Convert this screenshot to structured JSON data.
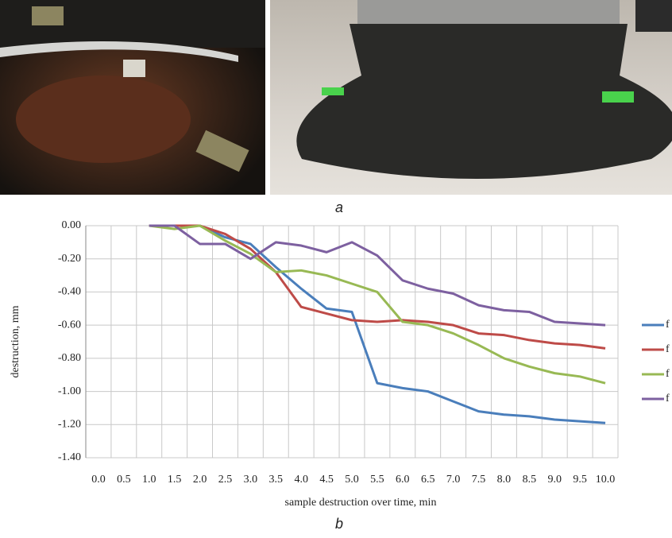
{
  "panel_a": {
    "label": "a"
  },
  "panel_b": {
    "label": "b"
  },
  "chart_data": {
    "type": "line",
    "xlabel": "sample destruction over time, min",
    "ylabel": "destruction, mm",
    "categories": [
      "0.0",
      "0.5",
      "1.0",
      "1.5",
      "2.0",
      "2.5",
      "3.0",
      "3.5",
      "4.0",
      "4.5",
      "5.0",
      "5.5",
      "6.0",
      "6.5",
      "7.0",
      "7.5",
      "8.0",
      "8.5",
      "9.0",
      "9.5",
      "10.0"
    ],
    "ylim": [
      -1.4,
      0
    ],
    "yticks": [
      {
        "value": 0,
        "label": "0.00"
      },
      {
        "value": -0.2,
        "label": "-0.20"
      },
      {
        "value": -0.4,
        "label": "-0.40"
      },
      {
        "value": -0.6,
        "label": "-0.60"
      },
      {
        "value": -0.8,
        "label": "-0.80"
      },
      {
        "value": -1.0,
        "label": "-1.00"
      },
      {
        "value": -1.2,
        "label": "-1.20"
      },
      {
        "value": -1.4,
        "label": "-1.40"
      }
    ],
    "grid": true,
    "legend": "right",
    "series": [
      {
        "name": "f",
        "color": "#4a7ebb",
        "values": [
          null,
          null,
          0,
          0,
          0,
          -0.07,
          -0.11,
          -0.25,
          -0.38,
          -0.5,
          -0.52,
          -0.95,
          -0.98,
          -1.0,
          -1.06,
          -1.12,
          -1.14,
          -1.15,
          -1.17,
          -1.18,
          -1.19
        ]
      },
      {
        "name": "f",
        "color": "#be4b48",
        "values": [
          null,
          null,
          0,
          0,
          0,
          -0.05,
          -0.14,
          -0.28,
          -0.49,
          -0.53,
          -0.57,
          -0.58,
          -0.57,
          -0.58,
          -0.6,
          -0.65,
          -0.66,
          -0.69,
          -0.71,
          -0.72,
          -0.74
        ]
      },
      {
        "name": "f",
        "color": "#98b954",
        "values": [
          null,
          null,
          0,
          -0.02,
          0,
          -0.09,
          -0.17,
          -0.28,
          -0.27,
          -0.3,
          -0.35,
          -0.4,
          -0.58,
          -0.6,
          -0.65,
          -0.72,
          -0.8,
          -0.85,
          -0.89,
          -0.91,
          -0.95
        ]
      },
      {
        "name": "f",
        "color": "#7d60a0",
        "values": [
          null,
          null,
          0,
          0,
          -0.11,
          -0.11,
          -0.2,
          -0.1,
          -0.12,
          -0.16,
          -0.1,
          -0.18,
          -0.33,
          -0.38,
          -0.41,
          -0.48,
          -0.51,
          -0.52,
          -0.58,
          -0.59,
          -0.6
        ]
      }
    ]
  }
}
